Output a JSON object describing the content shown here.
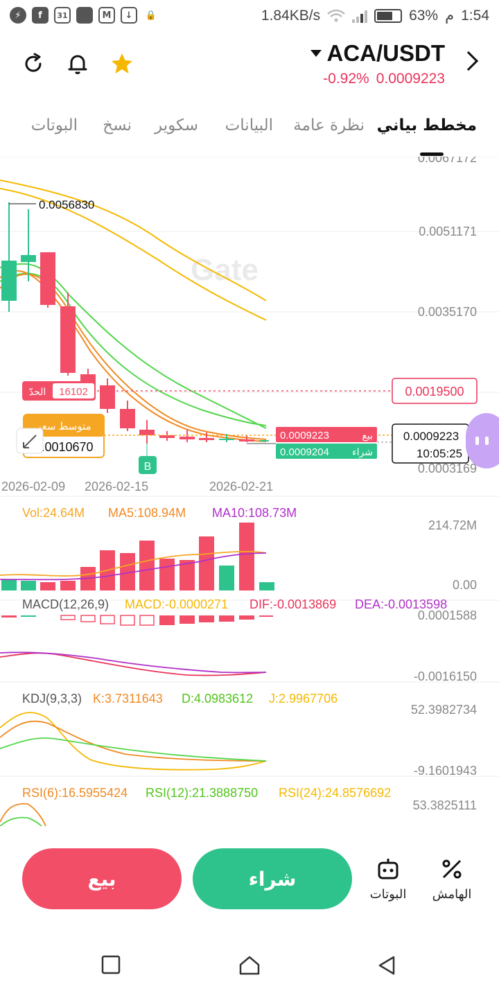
{
  "status": {
    "speed": "1.84KB/s",
    "battery": "63%",
    "time_suffix": "م",
    "time": "1:54",
    "calendar_day": "31"
  },
  "header": {
    "pair": "ACA/USDT",
    "change_pct": "-0.92%",
    "price": "0.0009223"
  },
  "tabs": [
    "مخطط بياني",
    "نظرة عامة",
    "البيانات",
    "سكوير",
    "نسخ",
    "البوتات"
  ],
  "chart": {
    "watermark": "Gate",
    "high_label": "0.0056830",
    "y_ticks": [
      "0.0067172",
      "0.0051171",
      "0.0035170",
      "0.0003169"
    ],
    "limit_label": "الحدّ",
    "limit_qty": "16102",
    "limit_price": "0.0019500",
    "avg_label": "متوسط سعر",
    "avg_value": "0.0010670",
    "sell_label": "بيع",
    "sell_price": "0.0009223",
    "buy_label": "شراء",
    "buy_price": "0.0009204",
    "last_price": "0.0009223",
    "countdown": "10:05:25",
    "marker": "B",
    "dates": [
      "2026-02-09",
      "2026-02-15",
      "2026-02-21"
    ],
    "vol": {
      "vol": "Vol:24.64M",
      "ma5": "MA5:108.94M",
      "ma10": "MA10:108.73M",
      "max": "214.72M",
      "min": "0.00"
    },
    "macd": {
      "title": "MACD(12,26,9)",
      "macd": "MACD:-0.0000271",
      "dif": "DIF:-0.0013869",
      "dea": "DEA:-0.0013598",
      "max": "0.0001588",
      "min": "-0.0016150"
    },
    "kdj": {
      "title": "KDJ(9,3,3)",
      "k": "K:3.7311643",
      "d": "D:4.0983612",
      "j": "J:2.9967706",
      "max": "52.3982734",
      "min": "-9.1601943"
    },
    "rsi": {
      "r6": "RSI(6):16.5955424",
      "r12": "RSI(12):21.3888750",
      "r24": "RSI(24):24.8576692",
      "max": "53.3825111"
    }
  },
  "actions": {
    "sell": "بيع",
    "buy": "شراء",
    "bots": "البوتات",
    "margin": "الهامش"
  },
  "colors": {
    "up": "#2ec38c",
    "down": "#f24e68",
    "accent": "#f5a623",
    "purple": "#b030c8"
  }
}
